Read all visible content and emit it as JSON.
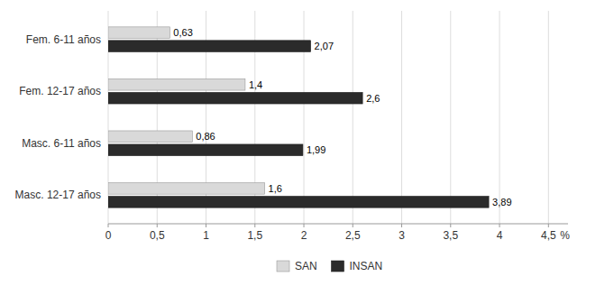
{
  "chart_data": {
    "type": "bar",
    "orientation": "horizontal",
    "categories": [
      "Masc. 12-17 años",
      "Masc. 6-11 años",
      "Fem. 12-17 años",
      "Fem. 6-11 años"
    ],
    "series": [
      {
        "name": "SAN",
        "color": "#d9d9d9",
        "values": [
          1.6,
          0.86,
          1.4,
          0.63
        ],
        "value_labels": [
          "1,6",
          "0,86",
          "1,4",
          "0,63"
        ]
      },
      {
        "name": "INSAN",
        "color": "#2b2b2b",
        "values": [
          3.89,
          1.99,
          2.6,
          2.07
        ],
        "value_labels": [
          "3,89",
          "1,99",
          "2,6",
          "2,07"
        ]
      }
    ],
    "xlim": [
      0,
      4.7
    ],
    "xticks": [
      0,
      {
        "value": 0.5,
        "label": "0,5"
      },
      1,
      {
        "value": 1.5,
        "label": "1,5"
      },
      2,
      {
        "value": 2.5,
        "label": "2,5"
      },
      3,
      {
        "value": 3.5,
        "label": "3,5"
      },
      4,
      {
        "value": 4.5,
        "label": "4,5"
      }
    ],
    "x_label": "%",
    "grid": true,
    "legend": "bottom",
    "data_labels": true
  }
}
